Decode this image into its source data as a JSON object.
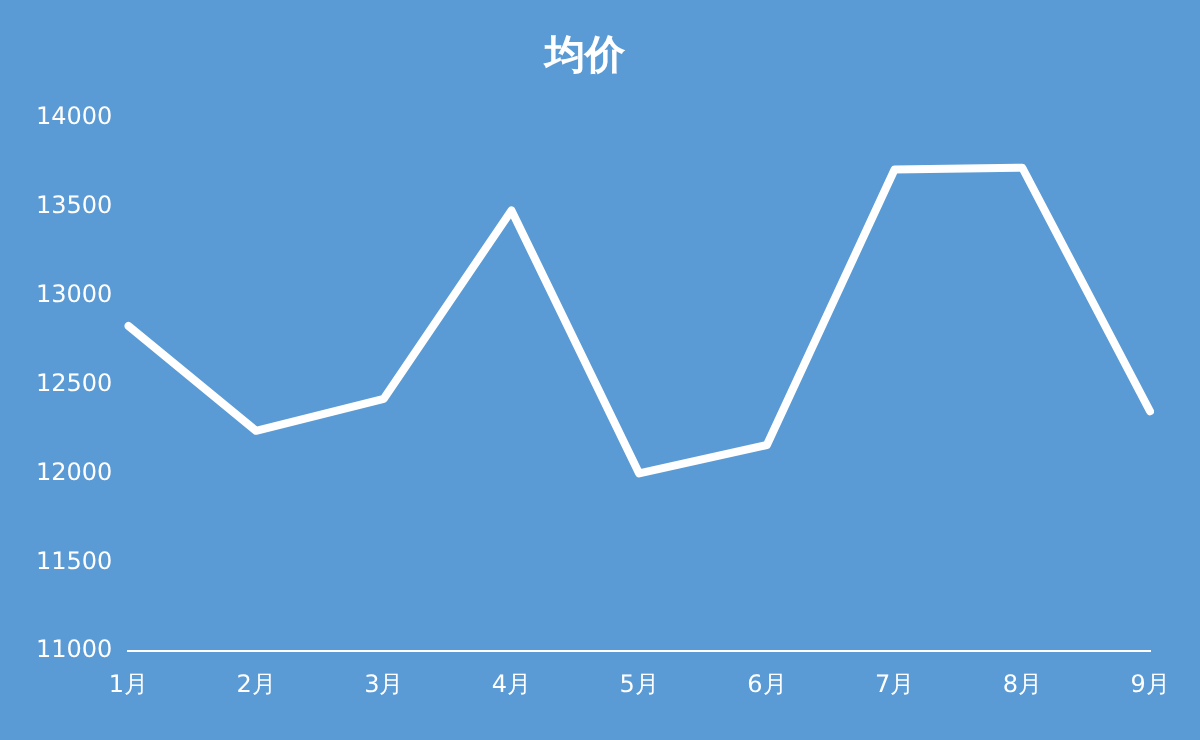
{
  "chart_data": {
    "type": "line",
    "title": "均价",
    "categories": [
      "1月",
      "2月",
      "3月",
      "4月",
      "5月",
      "6月",
      "7月",
      "8月",
      "9月"
    ],
    "series": [
      {
        "color": "#ffffff",
        "values": [
          12830,
          12240,
          12420,
          13480,
          12000,
          12160,
          13710,
          13720,
          12350
        ]
      }
    ],
    "ylim": [
      11000,
      14000
    ],
    "yticks": [
      11000,
      11500,
      12000,
      12500,
      13000,
      13500,
      14000
    ],
    "grid": false,
    "legend": false,
    "marker": "none",
    "line_style": "solid"
  }
}
